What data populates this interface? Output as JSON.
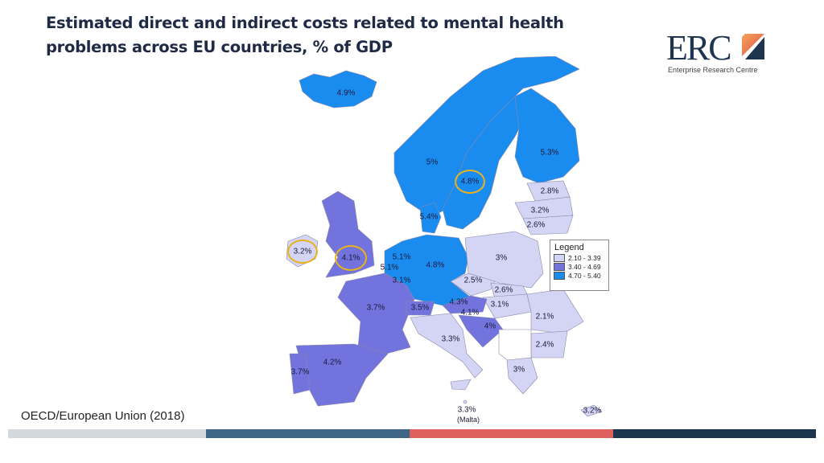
{
  "title": "Estimated direct and indirect costs related to mental health problems across EU countries, % of GDP",
  "logo": {
    "text": "ERC",
    "subtitle": "Enterprise Research Centre"
  },
  "source": "OECD/European Union (2018)",
  "colors": {
    "low": "#d4d4f5",
    "mid": "#7373de",
    "high": "#1a8cf0",
    "highlight": "#e8b21a",
    "bar": [
      "#d3d8dd",
      "#3e6585",
      "#e06060",
      "#1e3550"
    ]
  },
  "legend": {
    "title": "Legend",
    "items": [
      {
        "range": "2.10 - 3.39",
        "color": "#d4d4f5"
      },
      {
        "range": "3.40 - 4.69",
        "color": "#7373de"
      },
      {
        "range": "4.70 - 5.40",
        "color": "#1a8cf0"
      }
    ]
  },
  "labels": [
    "4.9%",
    "5%",
    "4.8%",
    "5.3%",
    "2.8%",
    "3.2%",
    "2.6%",
    "5.4%",
    "3.2%",
    "4.1%",
    "5.1%",
    "5.1%",
    "3.1%",
    "4.8%",
    "3%",
    "2.5%",
    "2.6%",
    "4.3%",
    "3.1%",
    "4.1%",
    "4%",
    "3.5%",
    "3.7%",
    "2.1%",
    "3.3%",
    "2.4%",
    "4.2%",
    "3.7%",
    "3%",
    "3.3%",
    "(Malta)",
    "3.2%"
  ]
}
